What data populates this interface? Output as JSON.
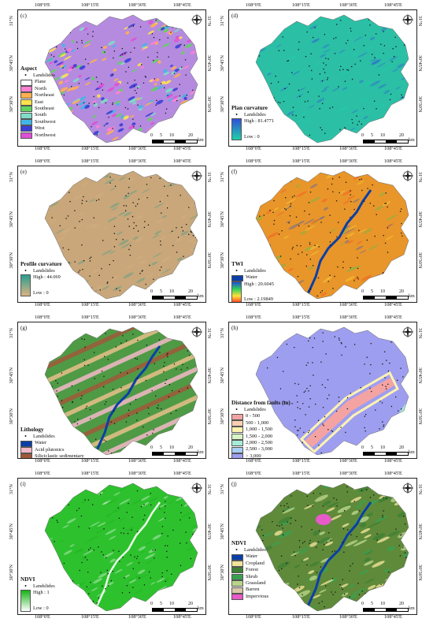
{
  "axis": {
    "top_ticks": [
      "108°0'E",
      "108°15'E",
      "108°30'E",
      "108°45'E"
    ],
    "bottom_ticks": [
      "108°0'E",
      "108°15'E",
      "108°30'E",
      "108°45'E"
    ],
    "left_ticks": [
      "31°N",
      "30°45'N",
      "30°30'N"
    ],
    "right_ticks": [
      "31°N",
      "30°45'N",
      "30°30'N"
    ]
  },
  "scale_bar": {
    "labels": [
      "0",
      "5",
      "10",
      "20"
    ],
    "unit": "km"
  },
  "icons": {
    "compass": "north-arrow-compass-icon",
    "landslide": "landslide-point-icon"
  },
  "colors": {
    "landslide": "#111111",
    "water": "#0b3fa6"
  },
  "panels": [
    {
      "id": "c",
      "label": "(c)",
      "title": "Aspect",
      "base_color": "#b58be0",
      "legend_type": "classes",
      "items": [
        {
          "label": "Landslides",
          "kind": "dot"
        },
        {
          "label": "Plane",
          "color": "#ffffff"
        },
        {
          "label": "North",
          "color": "#ff7fd4"
        },
        {
          "label": "Northeast",
          "color": "#ffb04d"
        },
        {
          "label": "East",
          "color": "#ffe24d"
        },
        {
          "label": "Southeast",
          "color": "#5fd35f"
        },
        {
          "label": "South",
          "color": "#7fdcc8"
        },
        {
          "label": "Southwest",
          "color": "#41b6e6"
        },
        {
          "label": "West",
          "color": "#3d3dd6"
        },
        {
          "label": "Northwest",
          "color": "#e04fd6"
        }
      ]
    },
    {
      "id": "d",
      "label": "(d)",
      "title": "Plan curvature",
      "base_color": "#2bbfa6",
      "legend_type": "gradient",
      "items": [
        {
          "label": "Landslides",
          "kind": "dot"
        }
      ],
      "gradient": {
        "high": "High : 81.4771",
        "low": "Low : 0",
        "colors": [
          "#3050d8",
          "#1fd0a8"
        ]
      }
    },
    {
      "id": "e",
      "label": "(e)",
      "title": "Profile curvature",
      "base_color": "#c9a77a",
      "legend_type": "gradient",
      "items": [
        {
          "label": "Landslides",
          "kind": "dot"
        }
      ],
      "gradient": {
        "high": "High : 44.069",
        "low": "Low : 0",
        "colors": [
          "#2a9d8f",
          "#d9b483"
        ]
      }
    },
    {
      "id": "f",
      "label": "(f)",
      "title": "TWI",
      "base_color": "#e8952a",
      "legend_type": "gradient",
      "items": [
        {
          "label": "Landslides",
          "kind": "dot"
        },
        {
          "label": "Water",
          "color": "#0b3fa6"
        }
      ],
      "gradient": {
        "high": "High : 20.6045",
        "low": "Low : 2.19849",
        "colors": [
          "#1f4fd8",
          "#2fd05a",
          "#ffe13a",
          "#ff3b1f"
        ]
      }
    },
    {
      "id": "g",
      "label": "(g)",
      "title": "Lithology",
      "base_color": "#4f9a45",
      "legend_type": "classes",
      "items": [
        {
          "label": "Landslides",
          "kind": "dot"
        },
        {
          "label": "Water",
          "color": "#0b3fa6"
        },
        {
          "label": "Acid plutonics",
          "color": "#f2b8c8"
        },
        {
          "label": "Siliciclastic sedimentary",
          "color": "#a0583a"
        },
        {
          "label": "Mixed sedimentary rock",
          "color": "#4f9a45"
        },
        {
          "label": "Carbonate sedimentary rock",
          "color": "#e6c08a"
        }
      ]
    },
    {
      "id": "h",
      "label": "(h)",
      "title": "Distance from faults (m)",
      "base_color": "#9e9ef0",
      "legend_type": "classes",
      "items": [
        {
          "label": "Landslides",
          "kind": "dot"
        },
        {
          "label": "0 - 500",
          "color": "#f4a3a3"
        },
        {
          "label": "500 - 1,000",
          "color": "#f8d0b0"
        },
        {
          "label": "1,000 - 1,500",
          "color": "#fff3b0"
        },
        {
          "label": "1,500 - 2,000",
          "color": "#d8f5c4"
        },
        {
          "label": "2,000 - 2,500",
          "color": "#a6ecd8"
        },
        {
          "label": "2,500 - 3,000",
          "color": "#a8cdf4"
        },
        {
          "label": "> 3,000",
          "color": "#9e9ef0"
        }
      ]
    },
    {
      "id": "i",
      "label": "(i)",
      "title": "NDVI",
      "base_color": "#2ec12e",
      "legend_type": "gradient",
      "items": [
        {
          "label": "Landslides",
          "kind": "dot"
        }
      ],
      "gradient": {
        "high": "High : 1",
        "low": "Low : 0",
        "colors": [
          "#16b316",
          "#ffffff"
        ]
      }
    },
    {
      "id": "j",
      "label": "(j)",
      "title": "NDVI",
      "base_color": "#5f8a3a",
      "legend_type": "classes",
      "items": [
        {
          "label": "Landslides",
          "kind": "dot"
        },
        {
          "label": "Water",
          "color": "#0b3fa6"
        },
        {
          "label": "Cropland",
          "color": "#f0e29a"
        },
        {
          "label": "Forest",
          "color": "#3f7f35"
        },
        {
          "label": "Shrub",
          "color": "#3aa04f"
        },
        {
          "label": "Grassland",
          "color": "#b9d48a"
        },
        {
          "label": "Barren",
          "color": "#d9c9a8"
        },
        {
          "label": "Impervious",
          "color": "#e75ac8"
        }
      ]
    }
  ]
}
